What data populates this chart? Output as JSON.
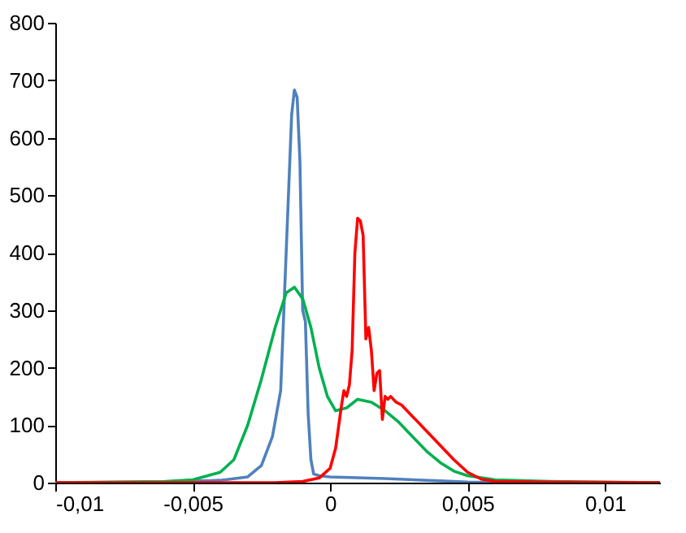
{
  "chart_data": {
    "type": "line",
    "xlim": [
      -0.01,
      0.012
    ],
    "ylim": [
      0,
      800
    ],
    "xticks": [
      {
        "value": -0.01,
        "label": "-0,01"
      },
      {
        "value": -0.005,
        "label": "-0,005"
      },
      0,
      {
        "value": 0.005,
        "label": "0,005"
      },
      {
        "value": 0.01,
        "label": "0,01"
      }
    ],
    "yticks": [
      0,
      100,
      200,
      300,
      400,
      500,
      600,
      700,
      800
    ],
    "grid": false,
    "legend": false,
    "marker": "none",
    "line_style": "solid",
    "series": [
      {
        "color": "#4f81bd",
        "x": [
          -0.01,
          -0.006,
          -0.004,
          -0.003,
          -0.0025,
          -0.0021,
          -0.0018,
          -0.0016,
          -0.0014,
          -0.0013,
          -0.0012,
          -0.0011,
          -0.001,
          -0.0009,
          -0.0008,
          -0.0007,
          -0.0006,
          -0.0004,
          0,
          0.002,
          0.004,
          0.005,
          0.008,
          0.012
        ],
        "values": [
          0,
          1,
          4,
          10,
          30,
          80,
          160,
          400,
          640,
          683,
          670,
          560,
          300,
          280,
          120,
          40,
          15,
          12,
          10,
          7,
          3,
          1,
          0,
          0
        ]
      },
      {
        "color": "#00b050",
        "x": [
          -0.01,
          -0.006,
          -0.005,
          -0.004,
          -0.0035,
          -0.003,
          -0.0025,
          -0.002,
          -0.0016,
          -0.0013,
          -0.001,
          -0.0007,
          -0.0004,
          -0.0001,
          0.0002,
          0.0006,
          0.001,
          0.0015,
          0.002,
          0.0025,
          0.003,
          0.0035,
          0.004,
          0.0045,
          0.005,
          0.006,
          0.008,
          0.012
        ],
        "values": [
          0,
          2,
          5,
          18,
          40,
          100,
          180,
          270,
          330,
          340,
          320,
          270,
          200,
          150,
          125,
          130,
          145,
          140,
          125,
          105,
          80,
          55,
          35,
          20,
          12,
          5,
          2,
          0
        ]
      },
      {
        "color": "#ff0000",
        "x": [
          -0.01,
          -0.002,
          -0.001,
          -0.0004,
          0,
          0.0002,
          0.0004,
          0.0005,
          0.0006,
          0.0007,
          0.0008,
          0.0009,
          0.001,
          0.0011,
          0.0012,
          0.0013,
          0.0014,
          0.0015,
          0.0016,
          0.0017,
          0.0018,
          0.0019,
          0.002,
          0.0021,
          0.0022,
          0.0024,
          0.0026,
          0.003,
          0.0035,
          0.004,
          0.0045,
          0.005,
          0.0055,
          0.006,
          0.008,
          0.012
        ],
        "values": [
          0,
          0,
          2,
          8,
          25,
          60,
          130,
          160,
          150,
          170,
          230,
          400,
          460,
          455,
          430,
          250,
          270,
          230,
          160,
          190,
          195,
          110,
          150,
          145,
          150,
          140,
          135,
          115,
          90,
          65,
          40,
          18,
          6,
          2,
          1,
          0
        ]
      }
    ]
  }
}
